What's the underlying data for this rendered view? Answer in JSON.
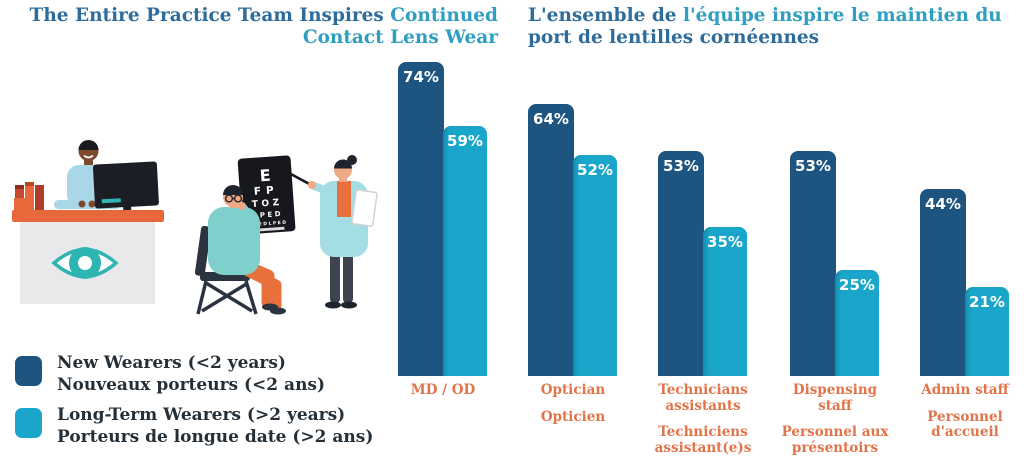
{
  "titles": {
    "en": {
      "line1_dark": "The Entire Practice Team Inspires",
      "line1_light": " Continued",
      "line2_light": "Contact Lens Wear"
    },
    "fr": {
      "line1_dark": "L'ensemble de",
      "line1_light": " l'équipe inspire le maintien du",
      "line2_dark": "port de lentilles cornéennes"
    }
  },
  "legend": {
    "items": [
      {
        "color": "#1d5480",
        "label_en": "New Wearers (<2 years)",
        "label_fr": "Nouveaux porteurs (<2 ans)"
      },
      {
        "color": "#1aa6ca",
        "label_en": "Long-Term Wearers (>2 years)",
        "label_fr": "Porteurs de longue date (>2 ans)"
      }
    ]
  },
  "chart_data": {
    "type": "bar",
    "title_en": "The Entire Practice Team Inspires Continued Contact Lens Wear",
    "title_fr": "L'ensemble de l'équipe inspire le maintien du port de lentilles cornéennes",
    "unit": "%",
    "categories": [
      "MD / OD",
      "Optician / Opticien",
      "Technicians assistants / Techniciens assistant(e)s",
      "Dispensing staff / Personnel aux présentoirs",
      "Admin staff / Personnel d'accueil"
    ],
    "series": [
      {
        "name_en": "New Wearers (<2 years)",
        "name_fr": "Nouveaux porteurs (<2 ans)",
        "color": "#1d5480",
        "values": [
          74,
          64,
          53,
          53,
          44
        ]
      },
      {
        "name_en": "Long-Term Wearers (>2 years)",
        "name_fr": "Porteurs de longue date (>2 ans)",
        "color": "#1aa6ca",
        "values": [
          59,
          52,
          35,
          25,
          21
        ]
      }
    ],
    "ylim": [
      0,
      100
    ],
    "grid": false,
    "axes_shown": false,
    "value_labels": "inside-top",
    "legend_position": "bottom-left"
  },
  "category_label_lines": [
    {
      "en": [
        "MD / OD"
      ],
      "fr": []
    },
    {
      "en": [
        "Optician"
      ],
      "fr": [
        "Opticien"
      ]
    },
    {
      "en": [
        "Technicians",
        "assistants"
      ],
      "fr": [
        "Techniciens",
        "assistant(e)s"
      ]
    },
    {
      "en": [
        "Dispensing",
        "staff"
      ],
      "fr": [
        "Personnel aux",
        "présentoirs"
      ]
    },
    {
      "en": [
        "Admin staff"
      ],
      "fr": [
        "Personnel",
        "d'accueil"
      ]
    }
  ],
  "illustration": {
    "eye_chart_rows": [
      "E",
      "FP",
      "TOZ",
      "LPED",
      "LPEDLPED"
    ]
  },
  "colors": {
    "bar_dark": "#1d5480",
    "bar_light": "#1aa6ca",
    "title_dark": "#2d6c9b",
    "title_light": "#2e9fc2",
    "category_orange": "#e2744a",
    "legend_text": "#252f38",
    "desk_orange": "#e7683a",
    "logo_teal": "#2fb5b1"
  }
}
